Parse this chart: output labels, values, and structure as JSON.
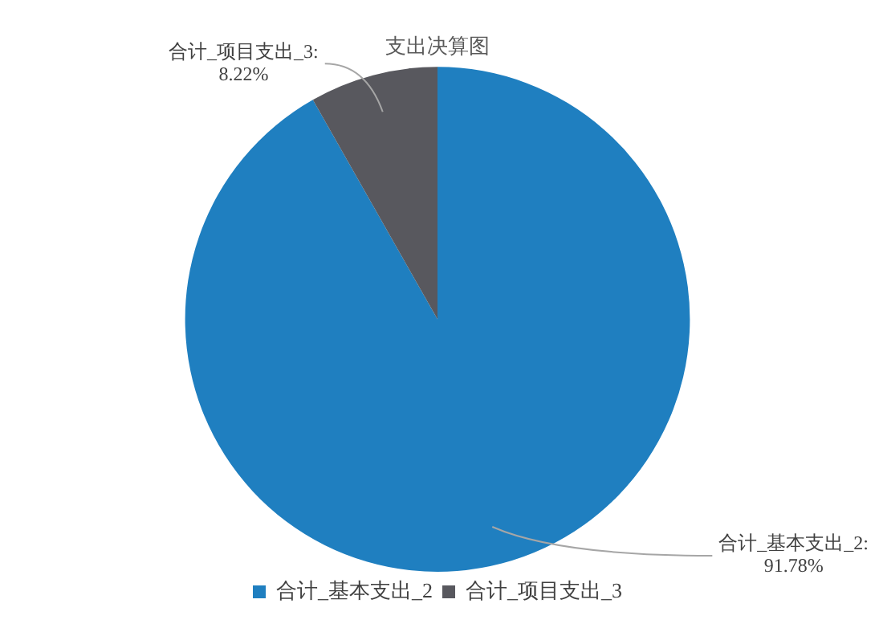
{
  "chart_data": {
    "type": "pie",
    "title": "支出决算图",
    "categories": [
      "合计_基本支出_2",
      "合计_项目支出_3"
    ],
    "values": [
      91.78,
      8.22
    ],
    "value_labels": [
      "合计_基本支出_2:\n91.78%",
      "合计_项目支出_3:\n8.22%"
    ],
    "colors": [
      "#1f7fc0",
      "#58585e"
    ],
    "legend": "bottom"
  }
}
